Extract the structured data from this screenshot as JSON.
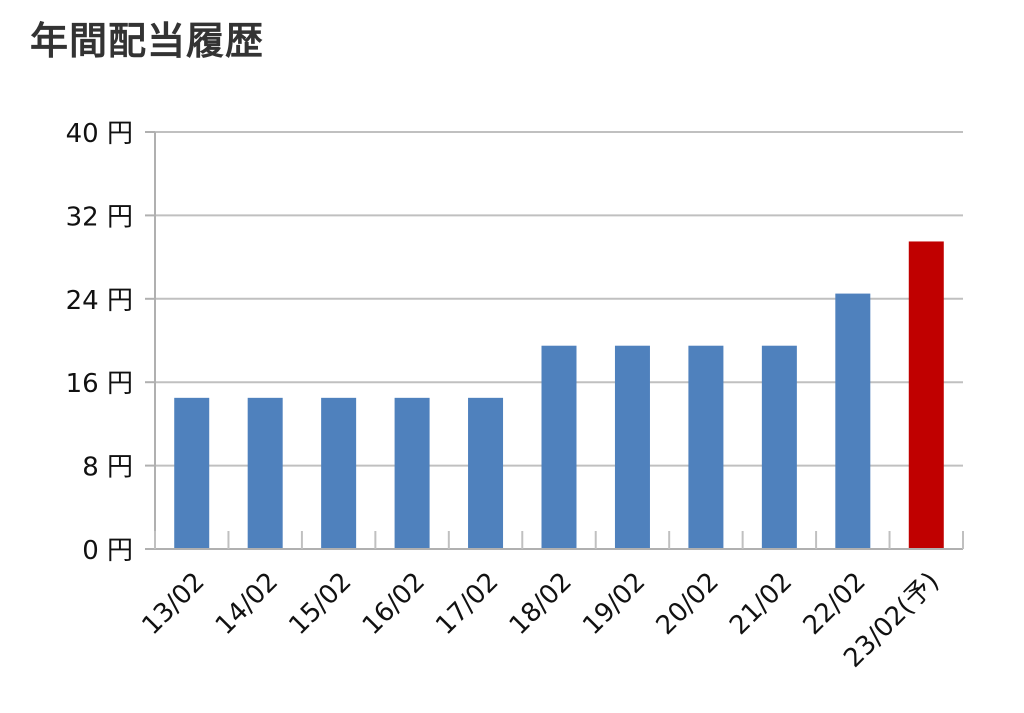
{
  "chart_data": {
    "type": "bar",
    "title": "年間配当履歴",
    "xlabel": "",
    "ylabel": "",
    "y_unit": "円",
    "ylim": [
      0,
      40
    ],
    "yticks": [
      0,
      8,
      16,
      24,
      32,
      40
    ],
    "grid": true,
    "legend": "none",
    "categories": [
      "13/02",
      "14/02",
      "15/02",
      "16/02",
      "17/02",
      "18/02",
      "19/02",
      "20/02",
      "21/02",
      "22/02",
      "23/02(予)"
    ],
    "values": [
      14.5,
      14.5,
      14.5,
      14.5,
      14.5,
      19.5,
      19.5,
      19.5,
      19.5,
      24.5,
      29.5
    ],
    "bar_colors": [
      "#4f81bd",
      "#4f81bd",
      "#4f81bd",
      "#4f81bd",
      "#4f81bd",
      "#4f81bd",
      "#4f81bd",
      "#4f81bd",
      "#4f81bd",
      "#4f81bd",
      "#c00000"
    ]
  }
}
